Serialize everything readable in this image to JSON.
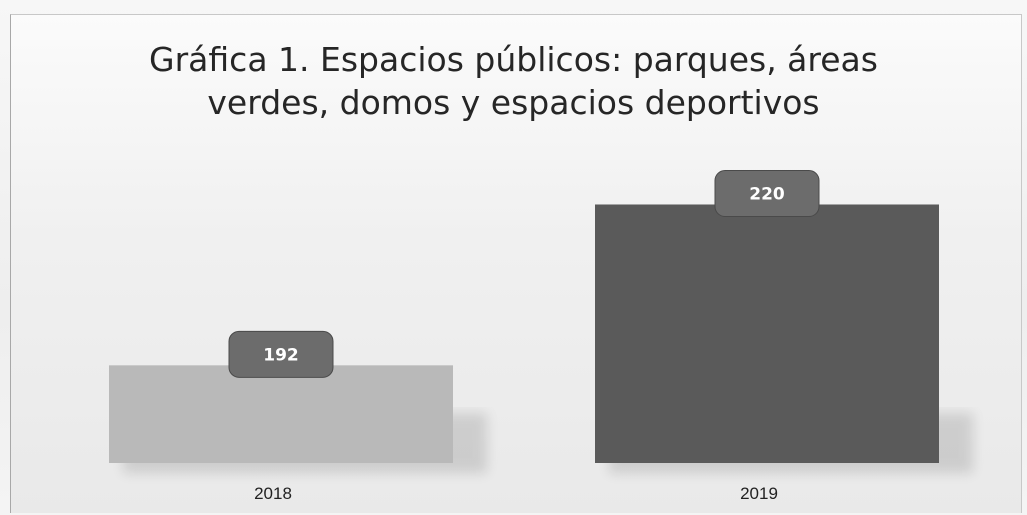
{
  "chart_data": {
    "type": "bar",
    "title": "Gráfica 1. Espacios públicos:  parques, áreas verdes, domos y espacios deportivos",
    "title_lines": [
      "Gráfica 1. Espacios públicos:  parques, áreas",
      "verdes, domos y espacios deportivos"
    ],
    "categories": [
      "2018",
      "2019"
    ],
    "values": [
      192,
      220
    ],
    "data_labels": [
      "192",
      "220"
    ],
    "ylim": [
      175,
      222
    ],
    "grid": false,
    "legend": "none",
    "colors": [
      "#b9b9b9",
      "#5a5a5a"
    ],
    "label_box_color": "#6c6c6c"
  }
}
